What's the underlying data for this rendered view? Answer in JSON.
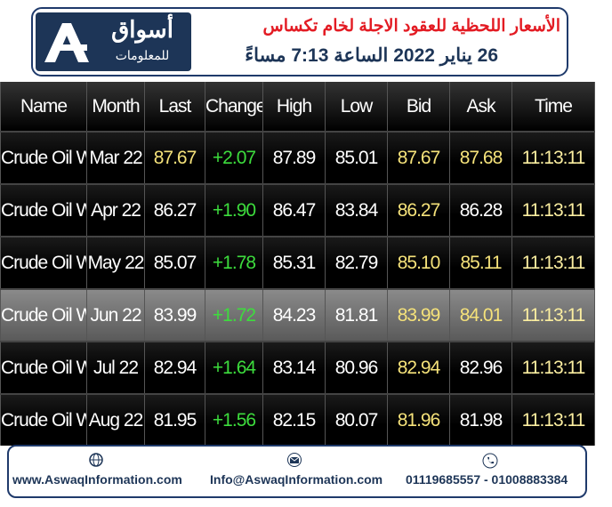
{
  "header": {
    "logo": {
      "name": "أسواق",
      "subtitle": "للمعلومات"
    },
    "title": "الأسعار اللحظية للعقود الاجلة لخام تكساس",
    "subtitle": "26 يناير 2022 الساعة 7:13 مساءً"
  },
  "table": {
    "columns": [
      "Name",
      "Month",
      "Last",
      "Change",
      "High",
      "Low",
      "Bid",
      "Ask",
      "Time"
    ],
    "rows": [
      [
        "Crude Oil WTI",
        "Mar 22",
        "87.67",
        "+2.07",
        "87.89",
        "85.01",
        "87.67",
        "87.68",
        "11:13:11"
      ],
      [
        "Crude Oil WTI",
        "Apr 22",
        "86.27",
        "+1.90",
        "86.47",
        "83.84",
        "86.27",
        "86.28",
        "11:13:11"
      ],
      [
        "Crude Oil WTI",
        "May 22",
        "85.07",
        "+1.78",
        "85.31",
        "82.79",
        "85.10",
        "85.11",
        "11:13:11"
      ],
      [
        "Crude Oil WTI",
        "Jun 22",
        "83.99",
        "+1.72",
        "84.23",
        "81.81",
        "83.99",
        "84.01",
        "11:13:11"
      ],
      [
        "Crude Oil WTI",
        "Jul 22",
        "82.94",
        "+1.64",
        "83.14",
        "80.96",
        "82.94",
        "82.96",
        "11:13:11"
      ],
      [
        "Crude Oil WTI",
        "Aug 22",
        "81.95",
        "+1.56",
        "82.15",
        "80.07",
        "81.96",
        "81.98",
        "11:13:11"
      ]
    ]
  },
  "footer": {
    "website": "www.AswaqInformation.com",
    "email": "Info@AswaqInformation.com",
    "phone": "01119685557 - 01008883384"
  }
}
